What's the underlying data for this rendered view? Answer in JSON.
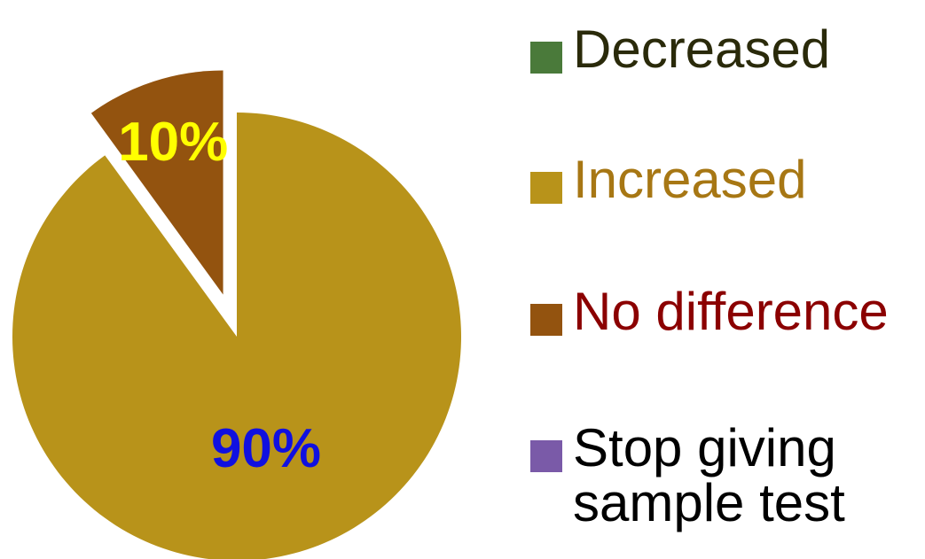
{
  "chart_data": {
    "type": "pie",
    "slices": [
      {
        "label": "Decreased",
        "value": 0,
        "color": "#4a7a3a",
        "label_color": "#2a2a0a"
      },
      {
        "label": "Increased",
        "value": 90,
        "color": "#b8931a",
        "label_color": "#a77714",
        "data_label": "90%",
        "data_label_color": "#1010e0"
      },
      {
        "label": "No difference",
        "value": 10,
        "color": "#93530f",
        "label_color": "#8b0000",
        "data_label": "10%",
        "data_label_color": "#ffff00",
        "exploded": true
      },
      {
        "label": "Stop giving\nsample test",
        "value": 0,
        "color": "#7a5aa8",
        "label_color": "#000000"
      }
    ],
    "legend_position": "right"
  }
}
